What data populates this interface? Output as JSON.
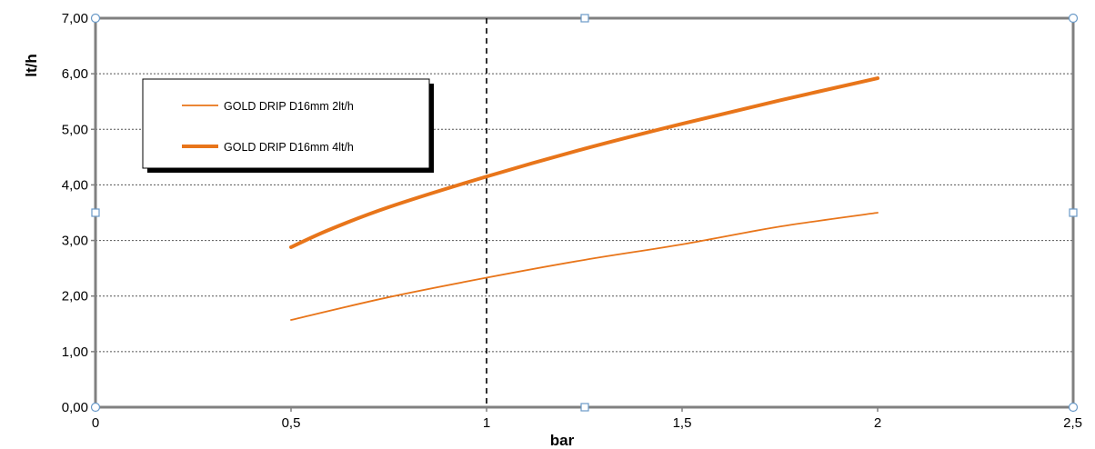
{
  "chart_data": {
    "type": "line",
    "xlabel": "bar",
    "ylabel": "lt/h",
    "xlim": [
      0,
      2.5
    ],
    "ylim": [
      0,
      7
    ],
    "x_ticks": [
      "0",
      "0,5",
      "1",
      "1,5",
      "2",
      "2,5"
    ],
    "y_ticks": [
      "0,00",
      "1,00",
      "2,00",
      "3,00",
      "4,00",
      "5,00",
      "6,00",
      "7,00"
    ],
    "grid": "horizontal dotted",
    "reference_line_x": 1,
    "legend_position": "top-left",
    "series": [
      {
        "name": "GOLD DRIP D16mm 2lt/h",
        "color": "#E8751A",
        "line": "thin",
        "x": [
          0.5,
          0.75,
          1.0,
          1.25,
          1.5,
          1.75,
          2.0
        ],
        "y": [
          1.57,
          1.98,
          2.33,
          2.65,
          2.93,
          3.25,
          3.5
        ]
      },
      {
        "name": "GOLD DRIP D16mm 4lt/h",
        "color": "#E8751A",
        "line": "thick",
        "x": [
          0.5,
          0.6,
          0.75,
          1.0,
          1.25,
          1.5,
          1.75,
          2.0
        ],
        "y": [
          2.88,
          3.2,
          3.6,
          4.15,
          4.65,
          5.1,
          5.52,
          5.92
        ]
      }
    ]
  }
}
